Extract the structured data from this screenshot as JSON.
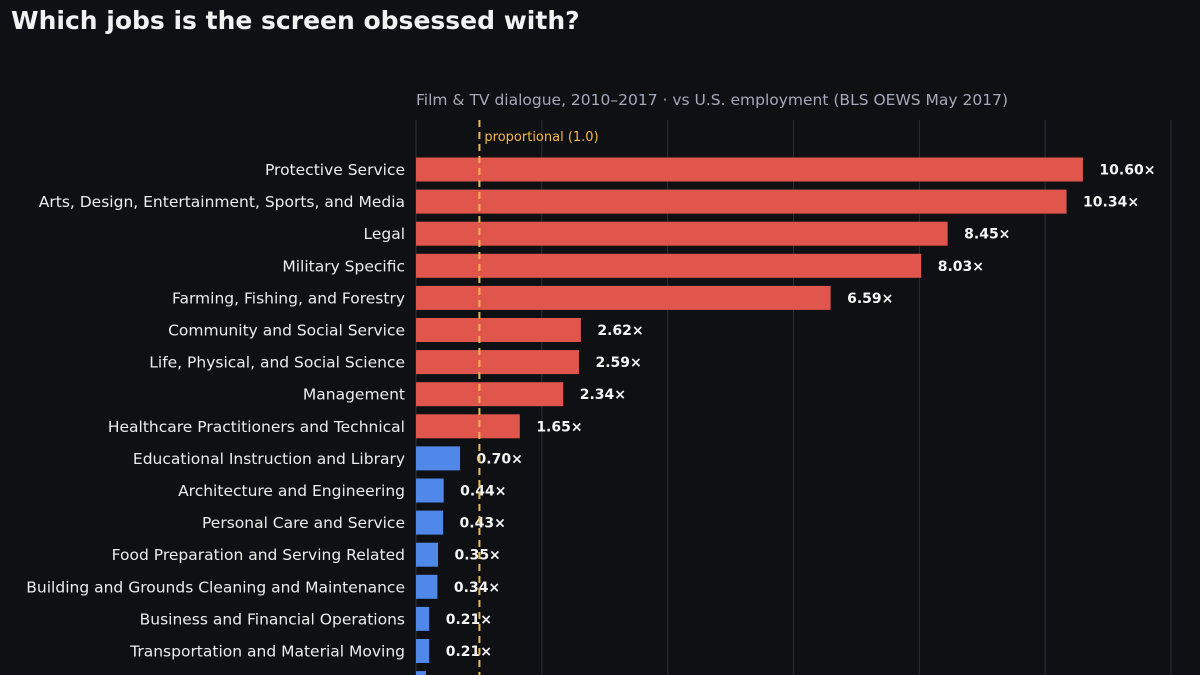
{
  "title": "Which jobs is the screen obsessed with?",
  "subtitle": "Film & TV dialogue, 2010–2017  ·  vs U.S. employment (BLS OEWS May 2017)",
  "colors": {
    "background": "#0f1014",
    "over": "#e0564c",
    "under": "#4f88e8",
    "reference": "#f5b942",
    "grid": "#2c2f37"
  },
  "chart_data": {
    "type": "bar",
    "orientation": "horizontal",
    "title": "Which jobs is the screen obsessed with?",
    "subtitle": "Film & TV dialogue, 2010–2017  ·  vs U.S. employment (BLS OEWS May 2017)",
    "xlabel": "",
    "ylabel": "",
    "xlim": [
      0,
      12
    ],
    "grid": "vertical",
    "value_suffix": "×",
    "reference_line": {
      "value": 1.0,
      "label": "proportional (1.0)",
      "style": "dashed"
    },
    "categories": [
      "Protective Service",
      "Arts, Design, Entertainment, Sports, and Media",
      "Legal",
      "Military Specific",
      "Farming, Fishing, and Forestry",
      "Community and Social Service",
      "Life, Physical, and Social Science",
      "Management",
      "Healthcare Practitioners and Technical",
      "Educational Instruction and Library",
      "Architecture and Engineering",
      "Personal Care and Service",
      "Food Preparation and Serving Related",
      "Building and Grounds Cleaning and Maintenance",
      "Business and Financial Operations",
      "Transportation and Material Moving"
    ],
    "values": [
      10.6,
      10.34,
      8.45,
      8.03,
      6.59,
      2.62,
      2.59,
      2.34,
      1.65,
      0.7,
      0.44,
      0.43,
      0.35,
      0.34,
      0.21,
      0.21
    ],
    "value_labels": [
      "10.60×",
      "10.34×",
      "8.45×",
      "8.03×",
      "6.59×",
      "2.62×",
      "2.59×",
      "2.34×",
      "1.65×",
      "0.70×",
      "0.44×",
      "0.43×",
      "0.35×",
      "0.34×",
      "0.21×",
      "0.21×"
    ]
  }
}
